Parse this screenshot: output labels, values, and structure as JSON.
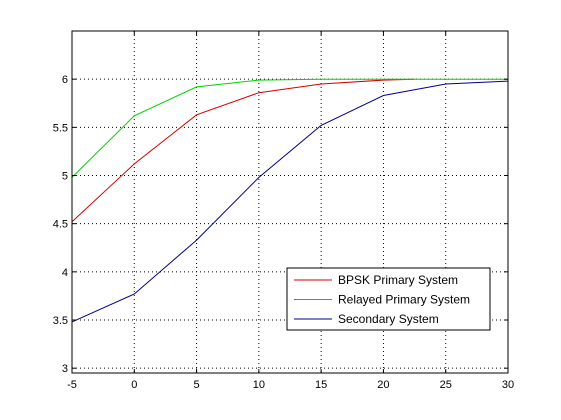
{
  "chart_data": {
    "type": "line",
    "title": "",
    "xlabel": "",
    "ylabel": "",
    "xlim": [
      -5,
      30
    ],
    "ylim": [
      2.95,
      6.5
    ],
    "xticks": [
      -5,
      0,
      5,
      10,
      15,
      20,
      25,
      30
    ],
    "xtick_labels": [
      "-5",
      "0",
      "5",
      "10",
      "15",
      "20",
      "25",
      "30"
    ],
    "yticks": [
      3,
      3.5,
      4,
      4.5,
      5,
      5.5,
      6
    ],
    "ytick_labels": [
      "3",
      "3.5",
      "4",
      "4.5",
      "5",
      "5.5",
      "6"
    ],
    "grid": true,
    "grid_style": "dotted",
    "legend_position": "lower-right",
    "series": [
      {
        "name": "BPSK Primary System",
        "color": "#d40000",
        "x": [
          -5,
          0,
          5,
          10,
          15,
          20,
          22.5
        ],
        "y": [
          4.52,
          5.12,
          5.63,
          5.86,
          5.95,
          5.99,
          6.0
        ]
      },
      {
        "name": "Relayed Primary System",
        "color": "#00d400",
        "x": [
          -5,
          0,
          5,
          10,
          15,
          20,
          25,
          30
        ],
        "y": [
          4.98,
          5.62,
          5.92,
          5.99,
          6.0,
          6.0,
          6.0,
          6.0
        ]
      },
      {
        "name": "Secondary System",
        "color": "#00008b",
        "x": [
          -5,
          0,
          5,
          10,
          15,
          20,
          25,
          30
        ],
        "y": [
          3.48,
          3.77,
          4.33,
          4.98,
          5.52,
          5.83,
          5.95,
          5.98
        ]
      }
    ]
  }
}
